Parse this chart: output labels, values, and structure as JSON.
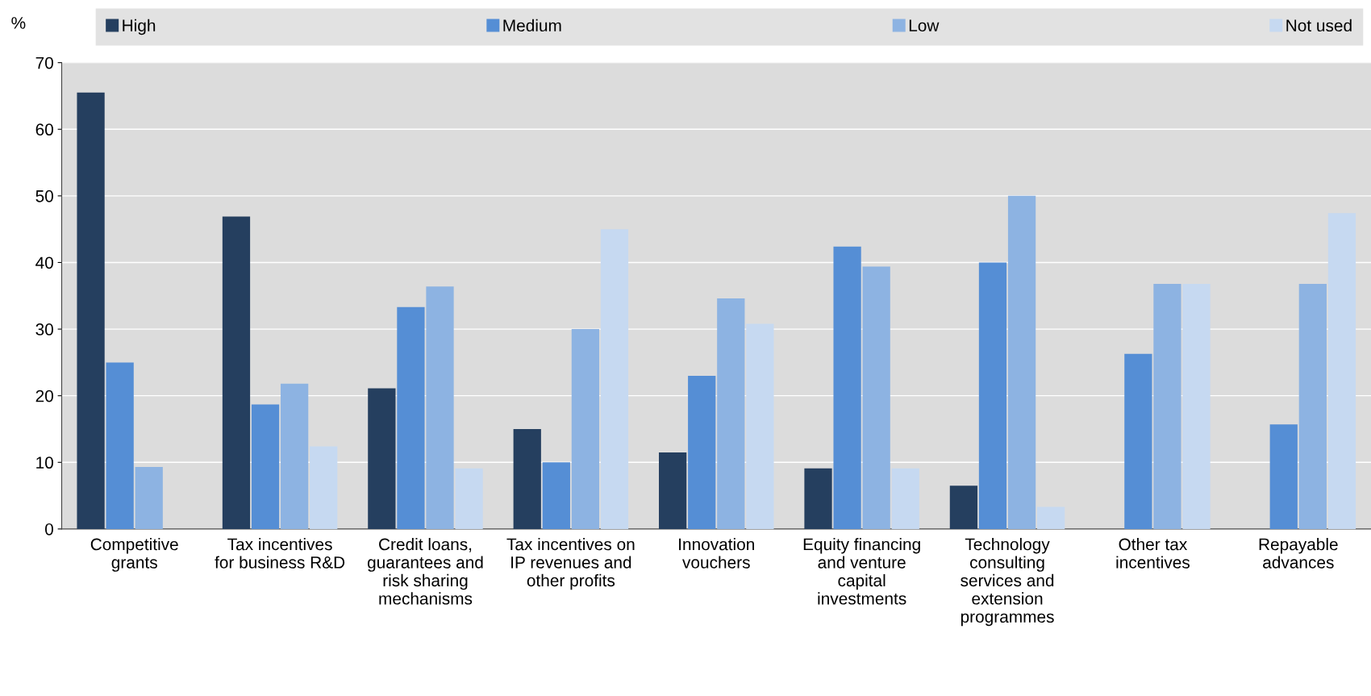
{
  "chart_data": {
    "type": "bar",
    "ylabel": "%",
    "categories": [
      "Competitive grants",
      "Tax incentives for business R&D",
      "Credit loans, guarantees and risk sharing mechanisms",
      "Tax incentives on IP revenues and other profits",
      "Innovation vouchers",
      "Equity financing and venture capital investments",
      "Technology consulting services and extension programmes",
      "Other tax incentives",
      "Repayable advances"
    ],
    "series": [
      {
        "name": "High",
        "color": "#253f5f",
        "values": [
          65.5,
          46.9,
          21.1,
          15,
          11.5,
          9.1,
          6.5,
          0,
          0
        ]
      },
      {
        "name": "Medium",
        "color": "#558ed5",
        "values": [
          25,
          18.7,
          33.3,
          10,
          23,
          42.4,
          40,
          26.3,
          15.7
        ]
      },
      {
        "name": "Low",
        "color": "#8db3e2",
        "values": [
          9.3,
          21.8,
          36.4,
          30,
          34.6,
          39.4,
          50,
          36.8,
          36.8
        ]
      },
      {
        "name": "Not used",
        "color": "#c6d9f1",
        "values": [
          0,
          12.4,
          9.1,
          45,
          30.8,
          9.1,
          3.3,
          36.8,
          47.4
        ]
      }
    ],
    "ylim": [
      0,
      70
    ],
    "yticks": [
      0,
      10,
      20,
      30,
      40,
      50,
      60,
      70
    ],
    "grid": "y",
    "legend": "top"
  }
}
